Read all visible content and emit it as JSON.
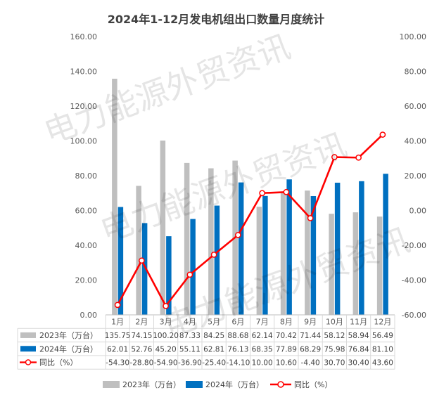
{
  "watermark": "电力能源外贸资讯",
  "chart_data": {
    "type": "bar",
    "title": "2024年1-12月发电机组出口数量月度统计",
    "categories": [
      "1月",
      "2月",
      "3月",
      "4月",
      "5月",
      "6月",
      "7月",
      "8月",
      "9月",
      "10月",
      "11月",
      "12月"
    ],
    "series": [
      {
        "name": "2023年（万台）",
        "kind": "bar",
        "color": "#bfbfbf",
        "values": [
          135.75,
          74.15,
          100.2,
          87.33,
          84.25,
          88.68,
          62.14,
          70.42,
          71.44,
          58.12,
          58.94,
          56.49
        ],
        "labels": [
          "135.75",
          "74.15",
          "100.20",
          "87.33",
          "84.25",
          "88.68",
          "62.14",
          "70.42",
          "71.44",
          "58.12",
          "58.94",
          "56.49"
        ]
      },
      {
        "name": "2024年（万台）",
        "kind": "bar",
        "color": "#0070c0",
        "values": [
          62.01,
          52.76,
          45.2,
          55.11,
          62.81,
          76.13,
          68.35,
          77.89,
          68.29,
          75.98,
          76.84,
          81.1
        ],
        "labels": [
          "62.01",
          "52.76",
          "45.20",
          "55.11",
          "62.81",
          "76.13",
          "68.35",
          "77.89",
          "68.29",
          "75.98",
          "76.84",
          "81.10"
        ]
      },
      {
        "name": "同比（%）",
        "kind": "line",
        "axis": "right",
        "color": "#ff0000",
        "values": [
          -54.3,
          -28.8,
          -54.9,
          -36.9,
          -25.4,
          -14.1,
          10.0,
          10.6,
          -4.4,
          30.7,
          30.4,
          43.6
        ],
        "labels": [
          "-54.30",
          "-28.80",
          "-54.90",
          "-36.90",
          "-25.40",
          "-14.10",
          "10.00",
          "10.60",
          "-4.40",
          "30.70",
          "30.40",
          "43.60"
        ]
      }
    ],
    "ylim": [
      0,
      160
    ],
    "yticks": [
      "0.00",
      "20.00",
      "40.00",
      "60.00",
      "80.00",
      "100.00",
      "120.00",
      "140.00",
      "160.00"
    ],
    "y2lim": [
      -60,
      100
    ],
    "y2ticks": [
      "-60.00",
      "-40.00",
      "-20.00",
      "0.00",
      "20.00",
      "40.00",
      "60.00",
      "80.00",
      "100.00"
    ],
    "legend": [
      "2023年（万台）",
      "2024年（万台）",
      "同比（%）"
    ],
    "legend_position": "bottom",
    "data_table": true,
    "grid": false
  }
}
